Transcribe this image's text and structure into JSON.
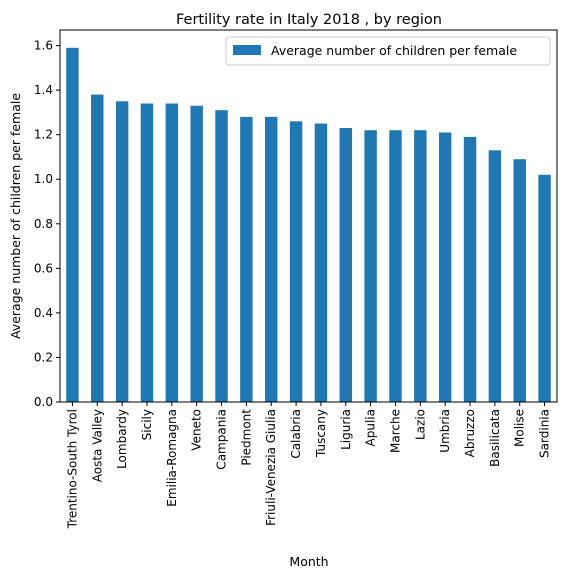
{
  "chart_data": {
    "type": "bar",
    "title": "Fertility rate in Italy 2018 , by region",
    "xlabel": "Month",
    "ylabel": "Average number of children per female",
    "ylim": [
      0,
      1.67
    ],
    "yticks": [
      0.0,
      0.2,
      0.4,
      0.6,
      0.8,
      1.0,
      1.2,
      1.4,
      1.6
    ],
    "ytick_labels": [
      "0.0",
      "0.2",
      "0.4",
      "0.6",
      "0.8",
      "1.0",
      "1.2",
      "1.4",
      "1.6"
    ],
    "grid": false,
    "legend_position": "top-right",
    "categories": [
      "Trentino-South Tyrol",
      "Aosta Valley",
      "Lombardy",
      "Sicily",
      "Emilia-Romagna",
      "Veneto",
      "Campania",
      "Piedmont",
      "Friuli-Venezia Giulia",
      "Calabria",
      "Tuscany",
      "Liguria",
      "Apulia",
      "Marche",
      "Lazio",
      "Umbria",
      "Abruzzo",
      "Basilicata",
      "Molise",
      "Sardinia"
    ],
    "series": [
      {
        "name": "Average number of children per female",
        "color": "#1f77b4",
        "values": [
          1.59,
          1.38,
          1.35,
          1.34,
          1.34,
          1.33,
          1.31,
          1.28,
          1.28,
          1.26,
          1.25,
          1.23,
          1.22,
          1.22,
          1.22,
          1.21,
          1.19,
          1.13,
          1.09,
          1.02
        ]
      }
    ]
  }
}
